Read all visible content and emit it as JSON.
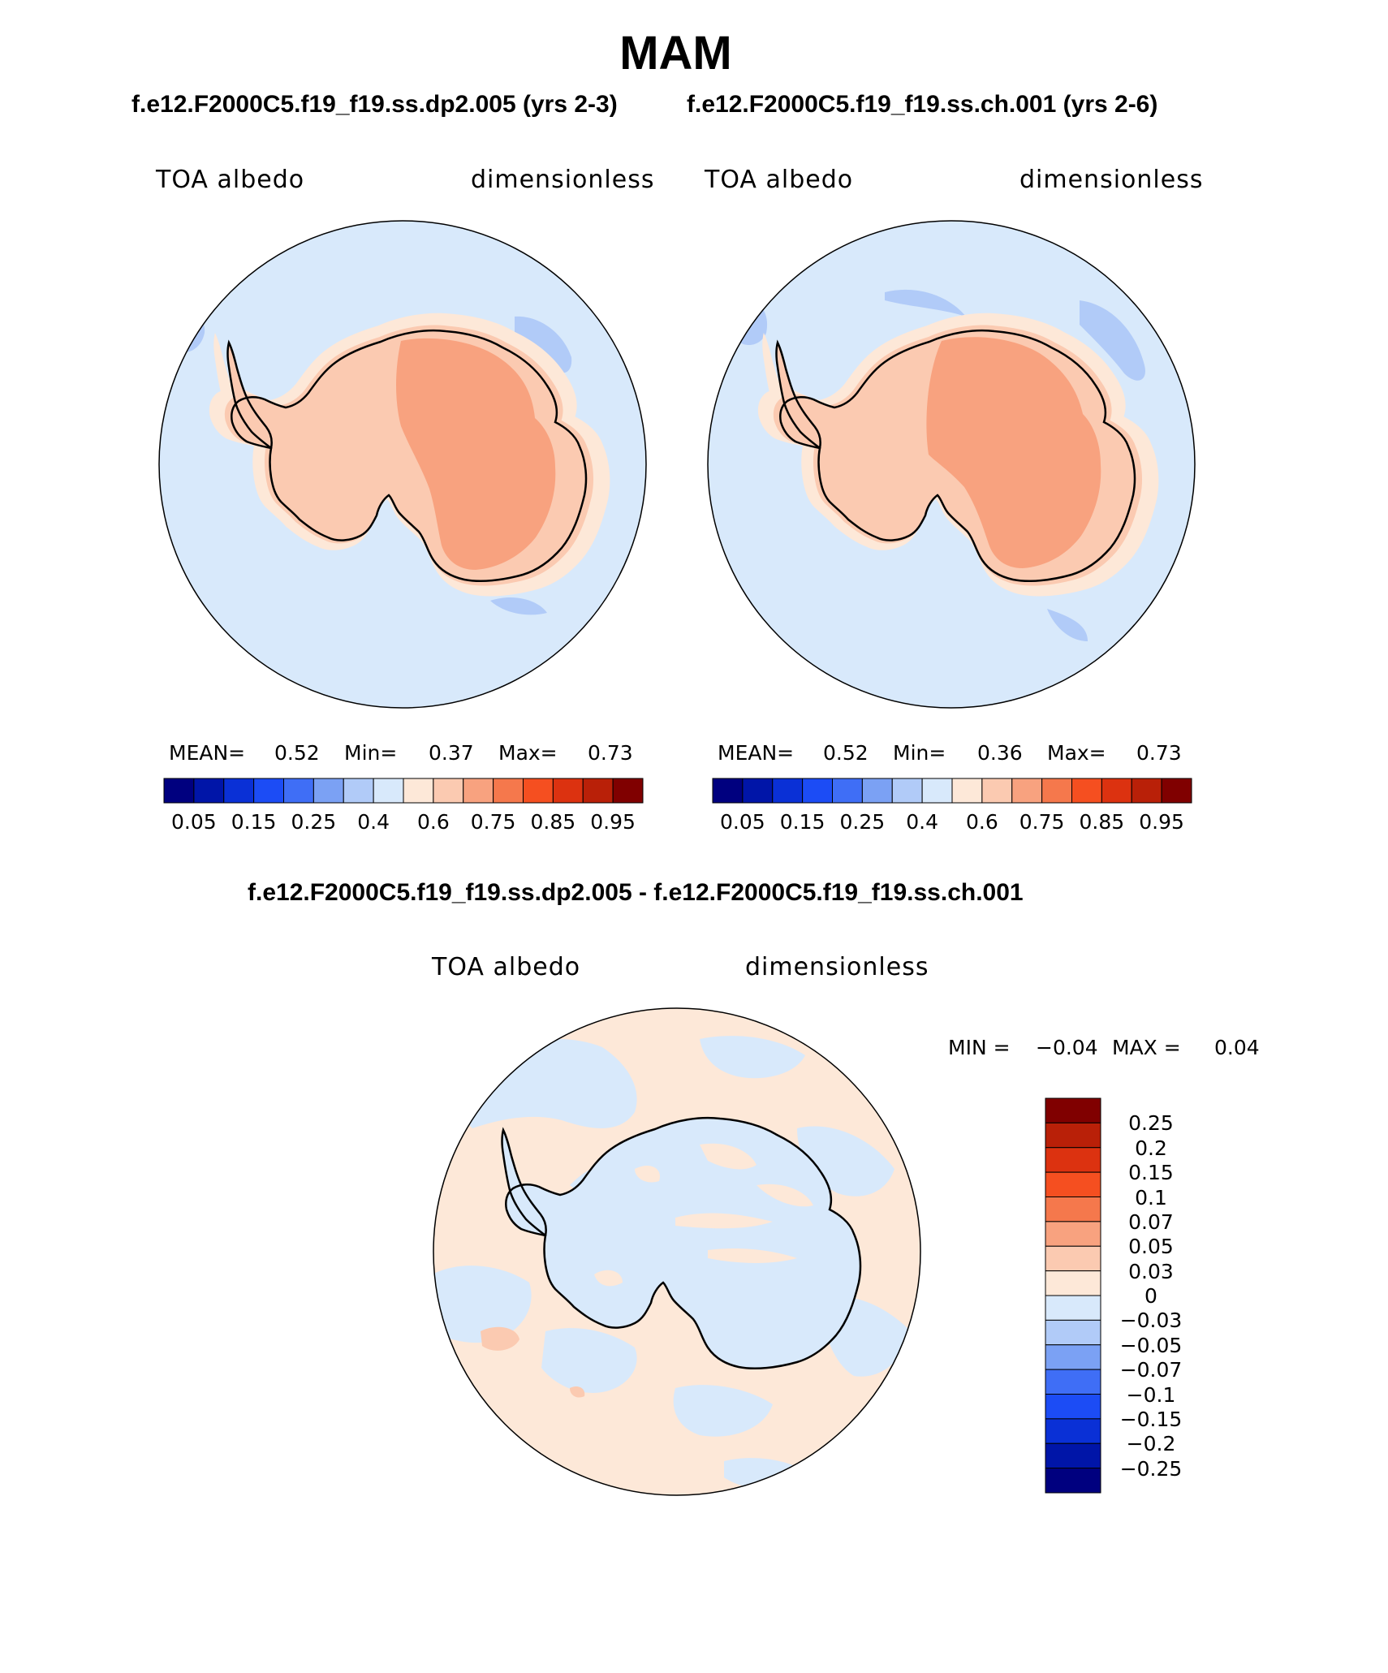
{
  "title": "MAM",
  "panels": [
    {
      "case_title": "f.e12.F2000C5.f19_f19.ss.dp2.005 (yrs 2-3)",
      "variable": "TOA albedo",
      "units": "dimensionless",
      "stats": {
        "mean_label": "MEAN=",
        "mean": "0.52",
        "min_label": "Min=",
        "min": "0.37",
        "max_label": "Max=",
        "max": "0.73"
      }
    },
    {
      "case_title": "f.e12.F2000C5.f19_f19.ss.ch.001 (yrs 2-6)",
      "variable": "TOA albedo",
      "units": "dimensionless",
      "stats": {
        "mean_label": "MEAN=",
        "mean": "0.52",
        "min_label": "Min=",
        "min": "0.36",
        "max_label": "Max=",
        "max": "0.73"
      }
    }
  ],
  "diff": {
    "title": "f.e12.F2000C5.f19_f19.ss.dp2.005 - f.e12.F2000C5.f19_f19.ss.ch.001",
    "variable": "TOA albedo",
    "units": "dimensionless",
    "stats": {
      "min_label": "MIN =",
      "min": "−0.04",
      "max_label": "MAX =",
      "max": "0.04"
    }
  },
  "colorbars": {
    "abs": {
      "colors": [
        "#00007f",
        "#0015a8",
        "#0a30d6",
        "#1c4cf5",
        "#3f6ef6",
        "#7ba1f4",
        "#b1cbf8",
        "#d8e9fb",
        "#fde8d8",
        "#fbcab1",
        "#f8a27f",
        "#f5784c",
        "#f54f20",
        "#dc3210",
        "#b92008",
        "#800000"
      ],
      "tick_labels": [
        "0.05",
        "0.15",
        "0.25",
        "0.4",
        "0.6",
        "0.75",
        "0.85",
        "0.95"
      ]
    },
    "diff": {
      "colors": [
        "#800000",
        "#b92008",
        "#dc3210",
        "#f54f20",
        "#f5784c",
        "#f8a27f",
        "#fbcab1",
        "#fde8d8",
        "#d8e9fb",
        "#b1cbf8",
        "#7ba1f4",
        "#3f6ef6",
        "#1c4cf5",
        "#0a30d6",
        "#0015a8",
        "#00007f"
      ],
      "tick_labels": [
        "0.25",
        "0.2",
        "0.15",
        "0.1",
        "0.07",
        "0.05",
        "0.03",
        "0",
        "−0.03",
        "−0.05",
        "−0.07",
        "−0.1",
        "−0.15",
        "−0.2",
        "−0.25"
      ]
    }
  },
  "map_colors": {
    "ocean": "#d8e9fb",
    "ocean_low": "#b1cbf8",
    "coast_band": "#fde8d8",
    "ice_outer": "#fbcab1",
    "ice_inner": "#f8a27f",
    "diff_positive": "#fde8d8",
    "diff_negative": "#d8e9fb",
    "diff_strong_positive": "#fbcab1"
  }
}
